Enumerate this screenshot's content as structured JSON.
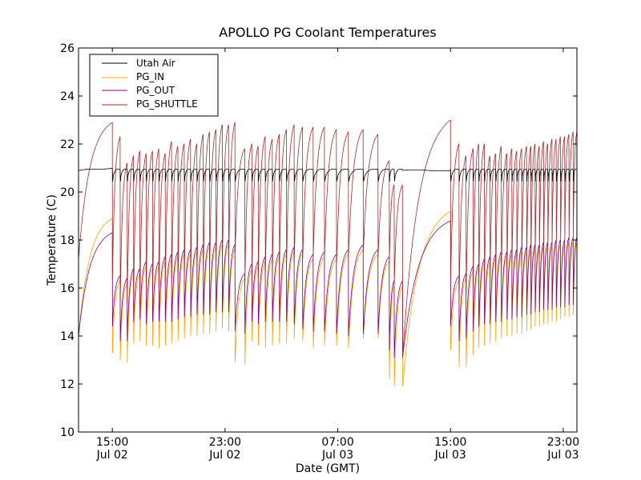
{
  "chart_data": {
    "type": "line",
    "title": "APOLLO PG Coolant Temperatures",
    "xlabel": "Date (GMT)",
    "ylabel": "Temperature (C)",
    "x_unit": "hours since Jul 02 00:00 GMT",
    "xlim": [
      12.6,
      47.97
    ],
    "ylim": [
      10,
      26
    ],
    "yticks": [
      10,
      12,
      14,
      16,
      18,
      20,
      22,
      24,
      26
    ],
    "xticks": [
      {
        "value": 15,
        "label_time": "15:00",
        "label_date": "Jul 02"
      },
      {
        "value": 23,
        "label_time": "23:00",
        "label_date": "Jul 02"
      },
      {
        "value": 31,
        "label_time": "07:00",
        "label_date": "Jul 03"
      },
      {
        "value": 39,
        "label_time": "15:00",
        "label_date": "Jul 03"
      },
      {
        "value": 47,
        "label_time": "23:00",
        "label_date": "Jul 03"
      }
    ],
    "grid": false,
    "legend": {
      "placement": "top-left",
      "entries": [
        "Utah Air",
        "PG_IN",
        "PG_OUT",
        "PG_SHUTTLE"
      ]
    },
    "series": [
      {
        "name": "Utah Air",
        "color": "#000000"
      },
      {
        "name": "PG_IN",
        "color": "#ffa500"
      },
      {
        "name": "PG_OUT",
        "color": "#800080"
      },
      {
        "name": "PG_SHUTTLE",
        "color": "#a52a2a"
      }
    ],
    "segments": [
      {
        "start": 12.6,
        "end": 15.0,
        "note": "warm-up",
        "shuttle": [
          17.2,
          22.9
        ],
        "pg_in": [
          14.0,
          18.9
        ],
        "pg_out": [
          14.0,
          18.3
        ],
        "air": [
          20.9,
          21.0
        ]
      },
      {
        "start": 15.0,
        "end": 35.6,
        "note": "cycling",
        "cycles": [
          {
            "t": 15.0,
            "peak": 21.4,
            "shuttle_min": 16.4,
            "in_min": 13.3,
            "out_min": 14.4,
            "out_max": 17.6
          },
          {
            "t": 15.55,
            "peak": 22.3,
            "shuttle_min": 15.5,
            "in_min": 13.0,
            "out_min": 13.8,
            "out_max": 16.5
          },
          {
            "t": 16.05,
            "peak": 21.2,
            "shuttle_min": 15.4,
            "in_min": 12.9,
            "out_min": 13.8,
            "out_max": 16.4
          },
          {
            "t": 16.5,
            "peak": 21.5,
            "shuttle_min": 15.6,
            "in_min": 13.7,
            "out_min": 14.6,
            "out_max": 16.8
          },
          {
            "t": 16.95,
            "peak": 21.7,
            "shuttle_min": 15.6,
            "in_min": 13.8,
            "out_min": 14.7,
            "out_max": 16.8
          },
          {
            "t": 17.4,
            "peak": 21.6,
            "shuttle_min": 15.9,
            "in_min": 13.6,
            "out_min": 14.5,
            "out_max": 17.1
          },
          {
            "t": 17.85,
            "peak": 21.7,
            "shuttle_min": 15.8,
            "in_min": 13.6,
            "out_min": 14.6,
            "out_max": 17.0
          },
          {
            "t": 18.3,
            "peak": 21.8,
            "shuttle_min": 16.0,
            "in_min": 13.5,
            "out_min": 14.6,
            "out_max": 17.1
          },
          {
            "t": 18.75,
            "peak": 21.6,
            "shuttle_min": 16.1,
            "in_min": 13.6,
            "out_min": 14.6,
            "out_max": 17.3
          },
          {
            "t": 19.2,
            "peak": 22.1,
            "shuttle_min": 16.2,
            "in_min": 13.7,
            "out_min": 14.6,
            "out_max": 17.4
          },
          {
            "t": 19.65,
            "peak": 21.9,
            "shuttle_min": 16.3,
            "in_min": 13.8,
            "out_min": 14.7,
            "out_max": 17.5
          },
          {
            "t": 20.1,
            "peak": 22.0,
            "shuttle_min": 16.4,
            "in_min": 13.9,
            "out_min": 14.8,
            "out_max": 17.6
          },
          {
            "t": 20.55,
            "peak": 22.2,
            "shuttle_min": 16.5,
            "in_min": 14.0,
            "out_min": 14.8,
            "out_max": 17.6
          },
          {
            "t": 21.0,
            "peak": 22.0,
            "shuttle_min": 16.6,
            "in_min": 14.0,
            "out_min": 14.9,
            "out_max": 17.7
          },
          {
            "t": 21.45,
            "peak": 22.4,
            "shuttle_min": 16.7,
            "in_min": 14.1,
            "out_min": 14.9,
            "out_max": 17.8
          },
          {
            "t": 21.9,
            "peak": 22.5,
            "shuttle_min": 16.8,
            "in_min": 14.1,
            "out_min": 14.9,
            "out_max": 17.9
          },
          {
            "t": 22.35,
            "peak": 22.6,
            "shuttle_min": 16.8,
            "in_min": 14.2,
            "out_min": 15.0,
            "out_max": 17.9
          },
          {
            "t": 22.8,
            "peak": 22.8,
            "shuttle_min": 16.9,
            "in_min": 14.3,
            "out_min": 15.0,
            "out_max": 18.0
          },
          {
            "t": 23.25,
            "peak": 22.8,
            "shuttle_min": 17.0,
            "in_min": 14.2,
            "out_min": 15.0,
            "out_max": 18.0
          },
          {
            "t": 23.7,
            "peak": 22.9,
            "shuttle_min": 17.5,
            "in_min": 12.9,
            "out_min": 14.2,
            "out_max": 17.8
          },
          {
            "t": 24.4,
            "peak": 21.8,
            "shuttle_min": 16.2,
            "in_min": 12.8,
            "out_min": 14.1,
            "out_max": 16.6
          },
          {
            "t": 24.9,
            "peak": 22.0,
            "shuttle_min": 16.3,
            "in_min": 13.8,
            "out_min": 14.6,
            "out_max": 17.0
          },
          {
            "t": 25.35,
            "peak": 21.9,
            "shuttle_min": 16.4,
            "in_min": 13.6,
            "out_min": 14.5,
            "out_max": 17.1
          },
          {
            "t": 25.85,
            "peak": 22.3,
            "shuttle_min": 16.5,
            "in_min": 13.5,
            "out_min": 14.6,
            "out_max": 17.3
          },
          {
            "t": 26.35,
            "peak": 22.2,
            "shuttle_min": 16.6,
            "in_min": 13.6,
            "out_min": 14.6,
            "out_max": 17.4
          },
          {
            "t": 26.85,
            "peak": 22.4,
            "shuttle_min": 16.7,
            "in_min": 13.7,
            "out_min": 14.6,
            "out_max": 17.5
          },
          {
            "t": 27.35,
            "peak": 22.6,
            "shuttle_min": 16.8,
            "in_min": 13.7,
            "out_min": 14.6,
            "out_max": 17.6
          },
          {
            "t": 27.9,
            "peak": 22.8,
            "shuttle_min": 17.0,
            "in_min": 13.9,
            "out_min": 14.5,
            "out_max": 17.7
          },
          {
            "t": 28.5,
            "peak": 22.7,
            "shuttle_min": 17.2,
            "in_min": 13.8,
            "out_min": 14.3,
            "out_max": 17.6
          },
          {
            "t": 29.25,
            "peak": 22.7,
            "shuttle_min": 17.3,
            "in_min": 13.5,
            "out_min": 14.2,
            "out_max": 17.4
          },
          {
            "t": 30.05,
            "peak": 22.7,
            "shuttle_min": 17.3,
            "in_min": 13.6,
            "out_min": 14.2,
            "out_max": 17.5
          },
          {
            "t": 30.9,
            "peak": 22.6,
            "shuttle_min": 17.0,
            "in_min": 13.6,
            "out_min": 14.1,
            "out_max": 17.4
          },
          {
            "t": 31.75,
            "peak": 22.5,
            "shuttle_min": 17.3,
            "in_min": 13.5,
            "out_min": 14.0,
            "out_max": 17.6
          },
          {
            "t": 32.8,
            "peak": 22.6,
            "shuttle_min": 17.5,
            "in_min": 13.9,
            "out_min": 14.1,
            "out_max": 17.8
          },
          {
            "t": 33.85,
            "peak": 22.4,
            "shuttle_min": 17.3,
            "in_min": 13.9,
            "out_min": 14.1,
            "out_max": 17.6
          },
          {
            "t": 34.65,
            "peak": 21.3,
            "shuttle_min": 17.0,
            "in_min": 12.2,
            "out_min": 13.4,
            "out_max": 17.3
          },
          {
            "t": 35.0,
            "peak": 20.3,
            "shuttle_min": 16.2,
            "in_min": 11.9,
            "out_min": 13.1,
            "out_max": 16.3
          }
        ]
      },
      {
        "start": 35.6,
        "end": 39.0,
        "note": "recovery",
        "shuttle": [
          13.1,
          23.0
        ],
        "pg_in": [
          11.9,
          19.2
        ],
        "pg_out": [
          13.1,
          18.8
        ],
        "air": [
          20.9,
          20.9
        ]
      },
      {
        "start": 39.0,
        "end": 47.97,
        "note": "cycling",
        "cycles": [
          {
            "t": 39.0,
            "peak": 21.2,
            "shuttle_min": 16.4,
            "in_min": 13.4,
            "out_min": 14.4,
            "out_max": 17.5
          },
          {
            "t": 39.6,
            "peak": 22.0,
            "shuttle_min": 15.5,
            "in_min": 12.7,
            "out_min": 13.8,
            "out_max": 16.5
          },
          {
            "t": 40.1,
            "peak": 21.5,
            "shuttle_min": 15.7,
            "in_min": 12.7,
            "out_min": 13.9,
            "out_max": 16.6
          },
          {
            "t": 40.6,
            "peak": 21.8,
            "shuttle_min": 15.9,
            "in_min": 13.2,
            "out_min": 14.2,
            "out_max": 16.9
          },
          {
            "t": 41.0,
            "peak": 22.0,
            "shuttle_min": 16.0,
            "in_min": 13.5,
            "out_min": 14.4,
            "out_max": 17.0
          },
          {
            "t": 41.4,
            "peak": 22.0,
            "shuttle_min": 16.1,
            "in_min": 13.6,
            "out_min": 14.5,
            "out_max": 17.2
          },
          {
            "t": 41.8,
            "peak": 21.5,
            "shuttle_min": 16.3,
            "in_min": 13.7,
            "out_min": 14.5,
            "out_max": 17.3
          },
          {
            "t": 42.2,
            "peak": 21.6,
            "shuttle_min": 16.4,
            "in_min": 13.8,
            "out_min": 14.6,
            "out_max": 17.4
          },
          {
            "t": 42.6,
            "peak": 21.9,
            "shuttle_min": 16.5,
            "in_min": 13.9,
            "out_min": 14.6,
            "out_max": 17.5
          },
          {
            "t": 43.0,
            "peak": 21.6,
            "shuttle_min": 16.6,
            "in_min": 14.0,
            "out_min": 14.7,
            "out_max": 17.5
          },
          {
            "t": 43.35,
            "peak": 21.8,
            "shuttle_min": 16.7,
            "in_min": 14.0,
            "out_min": 14.7,
            "out_max": 17.6
          },
          {
            "t": 43.7,
            "peak": 21.7,
            "shuttle_min": 16.8,
            "in_min": 14.1,
            "out_min": 14.8,
            "out_max": 17.6
          },
          {
            "t": 44.05,
            "peak": 21.8,
            "shuttle_min": 16.9,
            "in_min": 14.1,
            "out_min": 14.8,
            "out_max": 17.7
          },
          {
            "t": 44.4,
            "peak": 21.9,
            "shuttle_min": 17.0,
            "in_min": 14.2,
            "out_min": 14.9,
            "out_max": 17.7
          },
          {
            "t": 44.7,
            "peak": 21.9,
            "shuttle_min": 17.1,
            "in_min": 14.3,
            "out_min": 14.9,
            "out_max": 17.8
          },
          {
            "t": 45.0,
            "peak": 22.0,
            "shuttle_min": 17.2,
            "in_min": 14.4,
            "out_min": 15.0,
            "out_max": 17.8
          },
          {
            "t": 45.3,
            "peak": 21.9,
            "shuttle_min": 17.3,
            "in_min": 14.4,
            "out_min": 15.0,
            "out_max": 17.8
          },
          {
            "t": 45.6,
            "peak": 22.1,
            "shuttle_min": 17.5,
            "in_min": 14.5,
            "out_min": 15.1,
            "out_max": 17.9
          },
          {
            "t": 45.9,
            "peak": 22.0,
            "shuttle_min": 17.6,
            "in_min": 14.5,
            "out_min": 15.1,
            "out_max": 17.9
          },
          {
            "t": 46.2,
            "peak": 22.2,
            "shuttle_min": 17.7,
            "in_min": 14.6,
            "out_min": 15.1,
            "out_max": 17.9
          },
          {
            "t": 46.5,
            "peak": 22.2,
            "shuttle_min": 17.8,
            "in_min": 14.6,
            "out_min": 15.2,
            "out_max": 18.0
          },
          {
            "t": 46.8,
            "peak": 22.3,
            "shuttle_min": 17.9,
            "in_min": 14.7,
            "out_min": 15.2,
            "out_max": 18.0
          },
          {
            "t": 47.1,
            "peak": 22.3,
            "shuttle_min": 18.0,
            "in_min": 14.8,
            "out_min": 15.2,
            "out_max": 18.0
          },
          {
            "t": 47.4,
            "peak": 22.4,
            "shuttle_min": 18.0,
            "in_min": 14.8,
            "out_min": 15.3,
            "out_max": 18.1
          },
          {
            "t": 47.7,
            "peak": 22.5,
            "shuttle_min": 18.1,
            "in_min": 14.9,
            "out_min": 15.3,
            "out_max": 18.1
          }
        ]
      }
    ]
  }
}
